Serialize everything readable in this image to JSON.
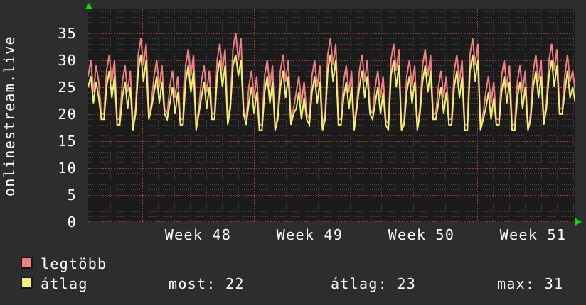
{
  "title": "onlinestream.live",
  "colors": {
    "background": "#2d2d2d",
    "plot_background": "#1b1b1b",
    "grid_minor": "#454545",
    "grid_major": "#8d4141",
    "axis_arrow": "#00e400",
    "text": "#ffffff"
  },
  "legend": {
    "items": [
      {
        "label": "legtöbb",
        "color": "#f08080"
      },
      {
        "label": "átlag",
        "color": "#f0f075"
      }
    ]
  },
  "stats": {
    "most": {
      "label": "most",
      "value": 22,
      "text": "most: 22"
    },
    "atlag": {
      "label": "átlag",
      "value": 23,
      "text": "átlag: 23"
    },
    "max": {
      "label": "max",
      "value": 31,
      "text": "max: 31"
    }
  },
  "chart_data": {
    "type": "line",
    "title": "onlinestream.live",
    "xlabel": "",
    "ylabel": "onlinestream.live",
    "ylim": [
      0,
      39.4
    ],
    "yticks": [
      0,
      5,
      10,
      15,
      20,
      25,
      30,
      35
    ],
    "x_labels": [
      "Week 48",
      "Week 49",
      "Week 50",
      "Week 51"
    ],
    "grid": true,
    "legend_position": "bottom-left",
    "x_description": "about 30.5 days ending in week 51, 6 samples per day",
    "series": [
      {
        "name": "legtöbb",
        "color": "#f08080",
        "values": [
          27,
          30,
          24,
          29,
          26,
          20,
          20,
          28,
          31,
          26,
          30,
          19,
          19,
          26,
          29,
          24,
          28,
          18,
          21,
          31,
          34,
          29,
          33,
          20,
          22,
          27,
          30,
          25,
          29,
          21,
          20,
          25,
          28,
          23,
          27,
          19,
          19,
          29,
          32,
          27,
          31,
          18,
          21,
          26,
          29,
          24,
          28,
          20,
          20,
          30,
          33,
          28,
          32,
          19,
          22,
          32,
          35,
          30,
          34,
          21,
          19,
          25,
          28,
          23,
          27,
          18,
          18,
          27,
          30,
          25,
          29,
          17,
          20,
          28,
          31,
          26,
          30,
          19,
          21,
          24,
          27,
          22,
          26,
          20,
          19,
          27,
          30,
          25,
          29,
          18,
          20,
          31,
          34,
          29,
          33,
          19,
          19,
          26,
          29,
          24,
          28,
          18,
          22,
          28,
          31,
          26,
          30,
          21,
          20,
          25,
          28,
          23,
          27,
          19,
          18,
          30,
          33,
          28,
          32,
          17,
          19,
          27,
          30,
          25,
          29,
          18,
          21,
          29,
          32,
          27,
          31,
          20,
          20,
          25,
          28,
          23,
          27,
          19,
          19,
          28,
          31,
          26,
          30,
          18,
          18,
          31,
          34,
          29,
          33,
          17,
          20,
          24,
          27,
          22,
          26,
          19,
          19,
          27,
          30,
          25,
          29,
          18,
          18,
          26,
          29,
          24,
          28,
          17,
          20,
          28,
          31,
          26,
          30,
          19,
          22,
          30,
          33,
          28,
          32,
          21,
          21,
          27,
          31,
          26,
          28,
          24
        ]
      },
      {
        "name": "átlag",
        "color": "#f0f075",
        "values": [
          25,
          27,
          22,
          26,
          23,
          19,
          19,
          25,
          28,
          23,
          27,
          18,
          18,
          23,
          26,
          21,
          25,
          17,
          20,
          28,
          31,
          26,
          30,
          19,
          21,
          24,
          27,
          22,
          26,
          20,
          19,
          22,
          25,
          20,
          24,
          18,
          18,
          26,
          29,
          24,
          28,
          17,
          20,
          23,
          26,
          21,
          25,
          19,
          19,
          27,
          30,
          25,
          29,
          18,
          21,
          29,
          31,
          27,
          30,
          20,
          18,
          22,
          25,
          20,
          24,
          17,
          17,
          24,
          27,
          22,
          26,
          17,
          19,
          25,
          28,
          23,
          27,
          18,
          20,
          21,
          24,
          19,
          23,
          19,
          18,
          24,
          27,
          22,
          26,
          17,
          19,
          28,
          31,
          26,
          30,
          18,
          18,
          23,
          26,
          21,
          25,
          17,
          21,
          25,
          28,
          23,
          27,
          20,
          19,
          22,
          25,
          20,
          24,
          18,
          17,
          27,
          30,
          25,
          29,
          17,
          18,
          24,
          27,
          22,
          26,
          17,
          20,
          26,
          29,
          24,
          28,
          19,
          19,
          22,
          25,
          20,
          24,
          18,
          18,
          25,
          28,
          23,
          27,
          17,
          17,
          28,
          31,
          26,
          30,
          17,
          19,
          21,
          24,
          19,
          23,
          18,
          18,
          24,
          27,
          22,
          26,
          17,
          17,
          23,
          26,
          21,
          25,
          17,
          19,
          25,
          28,
          23,
          27,
          18,
          21,
          27,
          30,
          25,
          29,
          20,
          20,
          24,
          28,
          23,
          25,
          22
        ]
      }
    ]
  }
}
